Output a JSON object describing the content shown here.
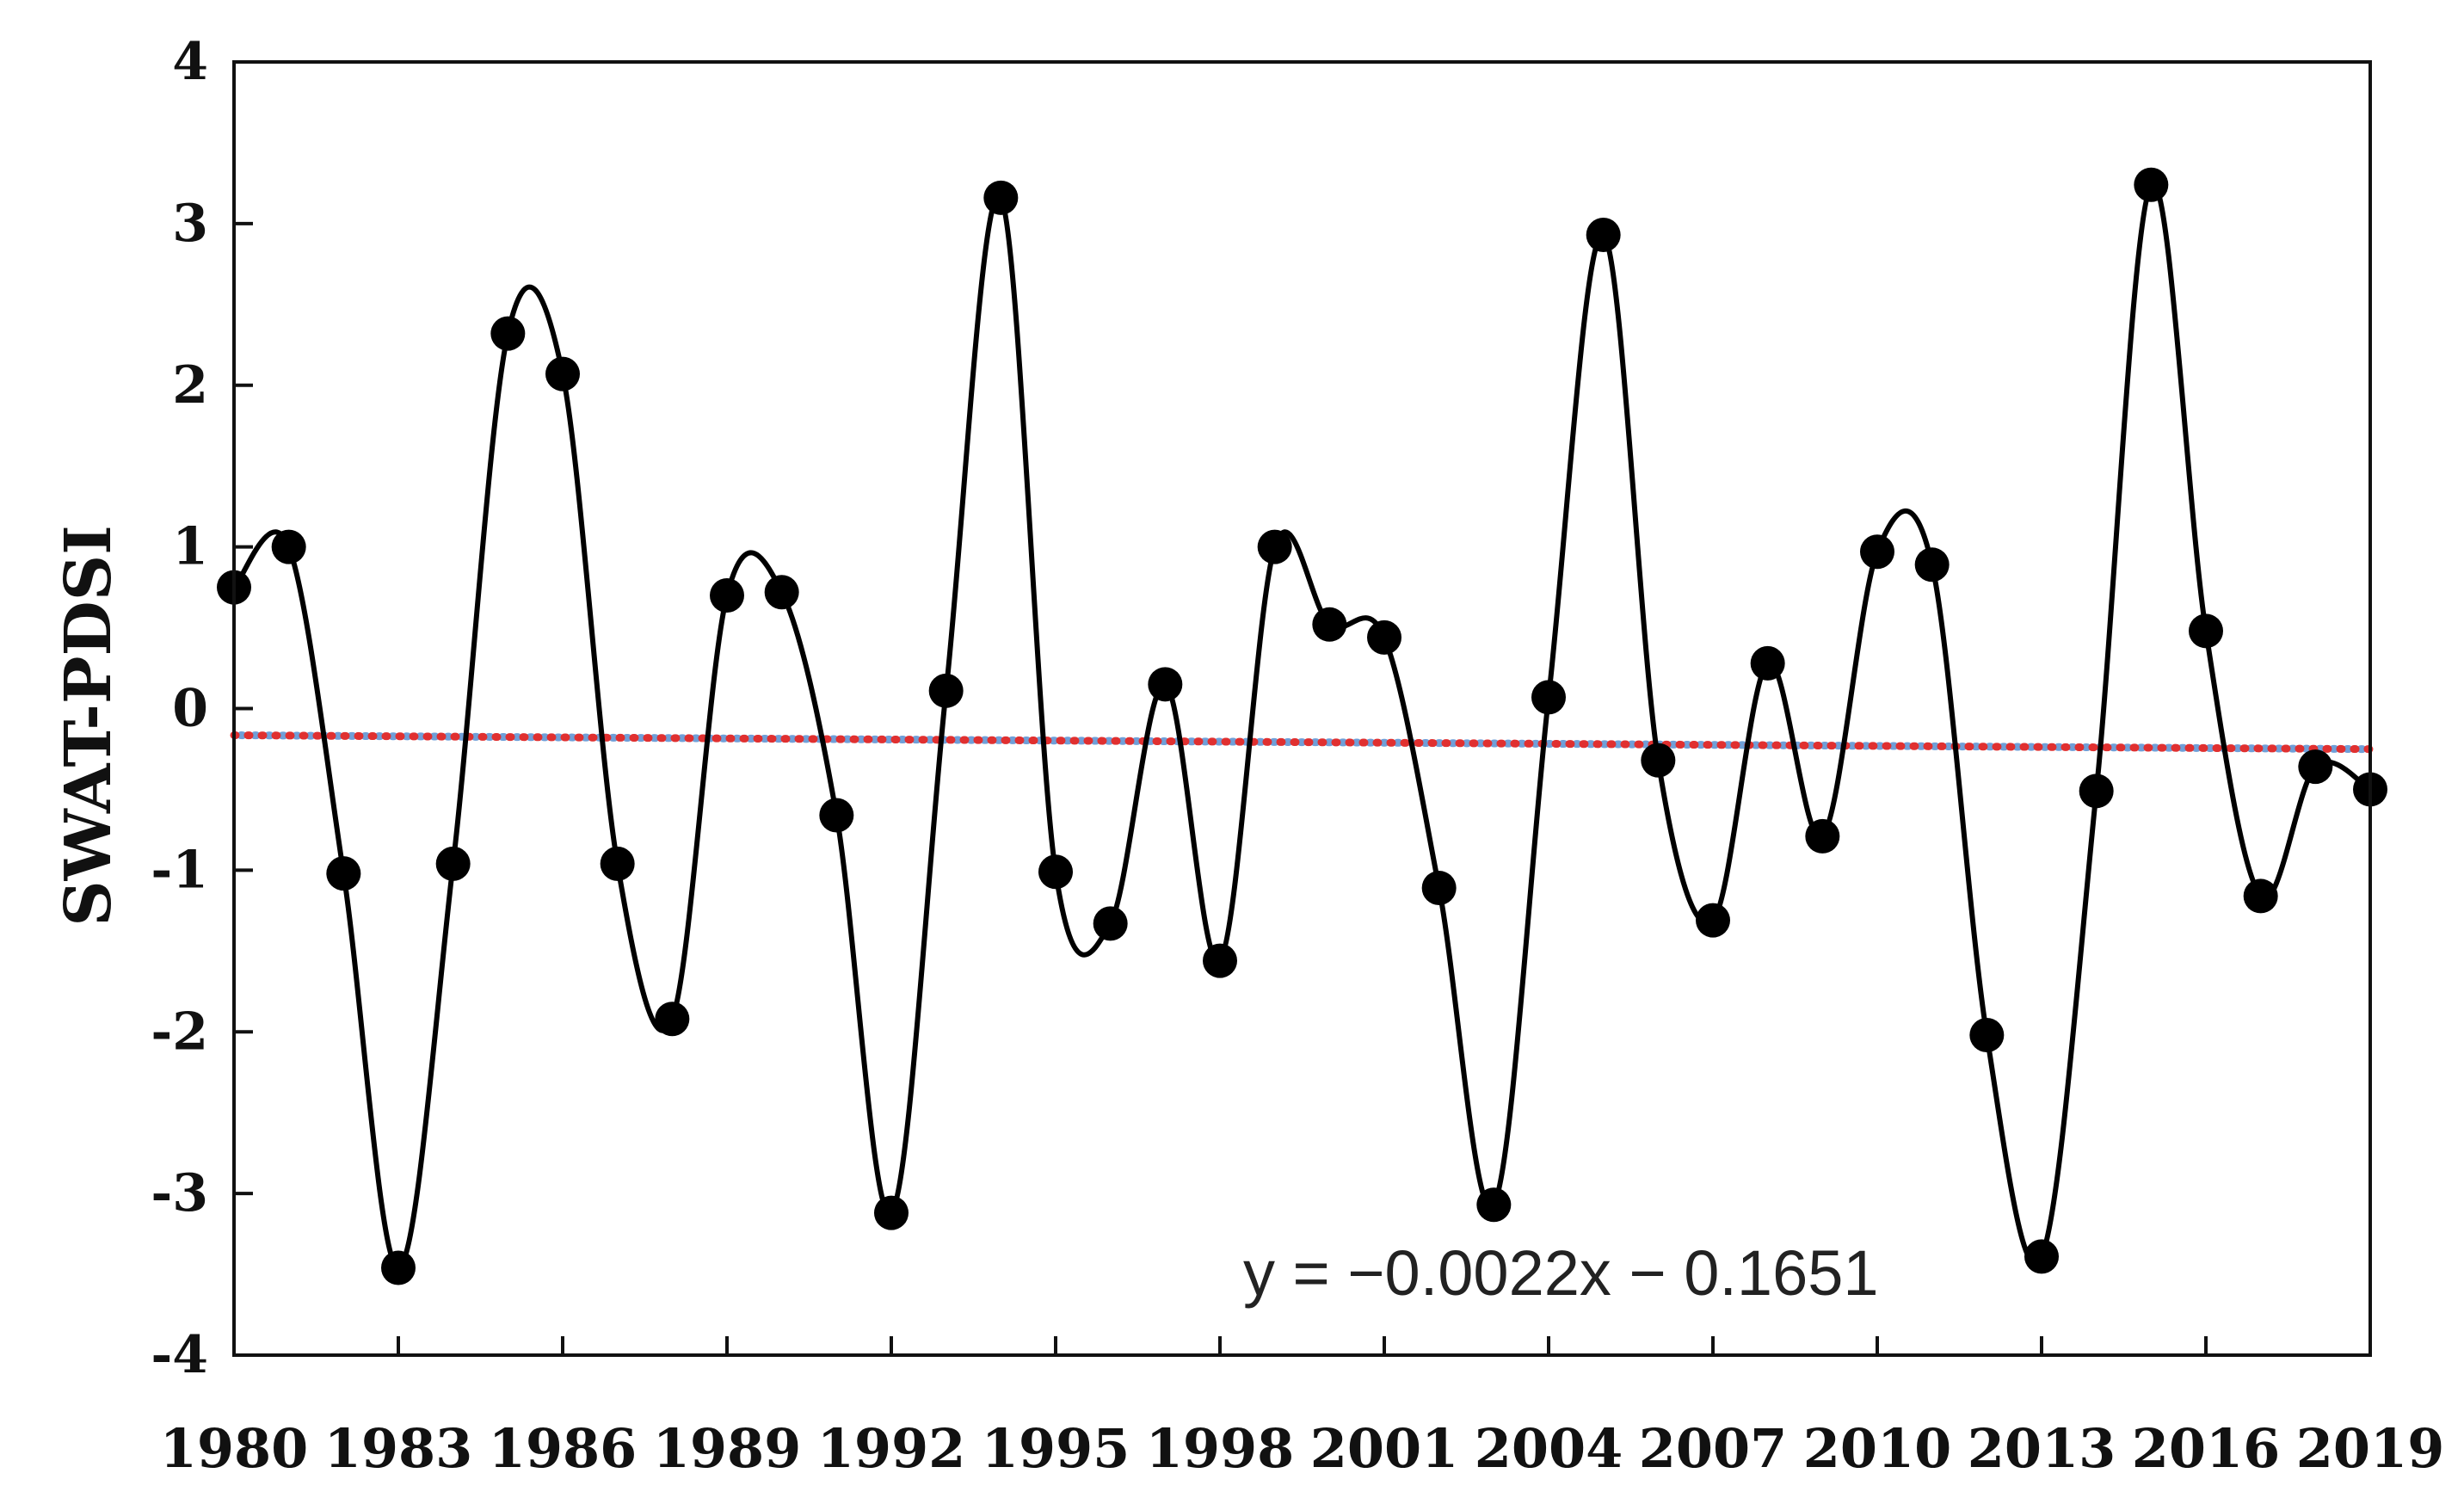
{
  "chart_data": {
    "type": "line",
    "title": "",
    "xlabel": "",
    "ylabel": "SWAT-PDSI",
    "xlim": [
      1980,
      2019
    ],
    "ylim": [
      -4,
      4
    ],
    "x_ticks": [
      "1980",
      "1983",
      "1986",
      "1989",
      "1992",
      "1995",
      "1998",
      "2001",
      "2004",
      "2007",
      "2010",
      "2013",
      "2016",
      "2019"
    ],
    "y_ticks": [
      "4",
      "3",
      "2",
      "1",
      "0",
      "-1",
      "-2",
      "-3",
      "-4"
    ],
    "grid": false,
    "legend": "none",
    "series": [
      {
        "style": "smoothed line with circle markers",
        "color": "#000000",
        "x": [
          1980,
          1981,
          1982,
          1983,
          1984,
          1985,
          1986,
          1987,
          1988,
          1989,
          1990,
          1991,
          1992,
          1993,
          1994,
          1995,
          1996,
          1997,
          1998,
          1999,
          2000,
          2001,
          2002,
          2003,
          2004,
          2005,
          2006,
          2007,
          2008,
          2009,
          2010,
          2011,
          2012,
          2013,
          2014,
          2015,
          2016,
          2017,
          2018,
          2019
        ],
        "y": [
          0.75,
          1.0,
          -1.02,
          -3.46,
          -0.96,
          2.32,
          2.07,
          -0.96,
          -1.92,
          0.7,
          0.72,
          -0.66,
          -3.12,
          0.11,
          3.16,
          -1.01,
          -1.33,
          0.15,
          -1.56,
          1.0,
          0.52,
          0.44,
          -1.11,
          -3.07,
          0.07,
          2.93,
          -0.32,
          -1.31,
          0.28,
          -0.79,
          0.97,
          0.89,
          -2.02,
          -3.39,
          -0.51,
          3.24,
          0.48,
          -1.16,
          -0.36,
          -0.5
        ]
      },
      {
        "style": "dotted trend line",
        "color": "#e03030",
        "x": [
          1980,
          2019
        ],
        "y": [
          -0.165,
          -0.251
        ]
      },
      {
        "style": "dotted trend line",
        "color": "#6f9fd8",
        "x": [
          1980,
          2019
        ],
        "y": [
          -0.165,
          -0.251
        ]
      }
    ],
    "annotations": [
      "y = −0.0022x − 0.1651"
    ]
  }
}
